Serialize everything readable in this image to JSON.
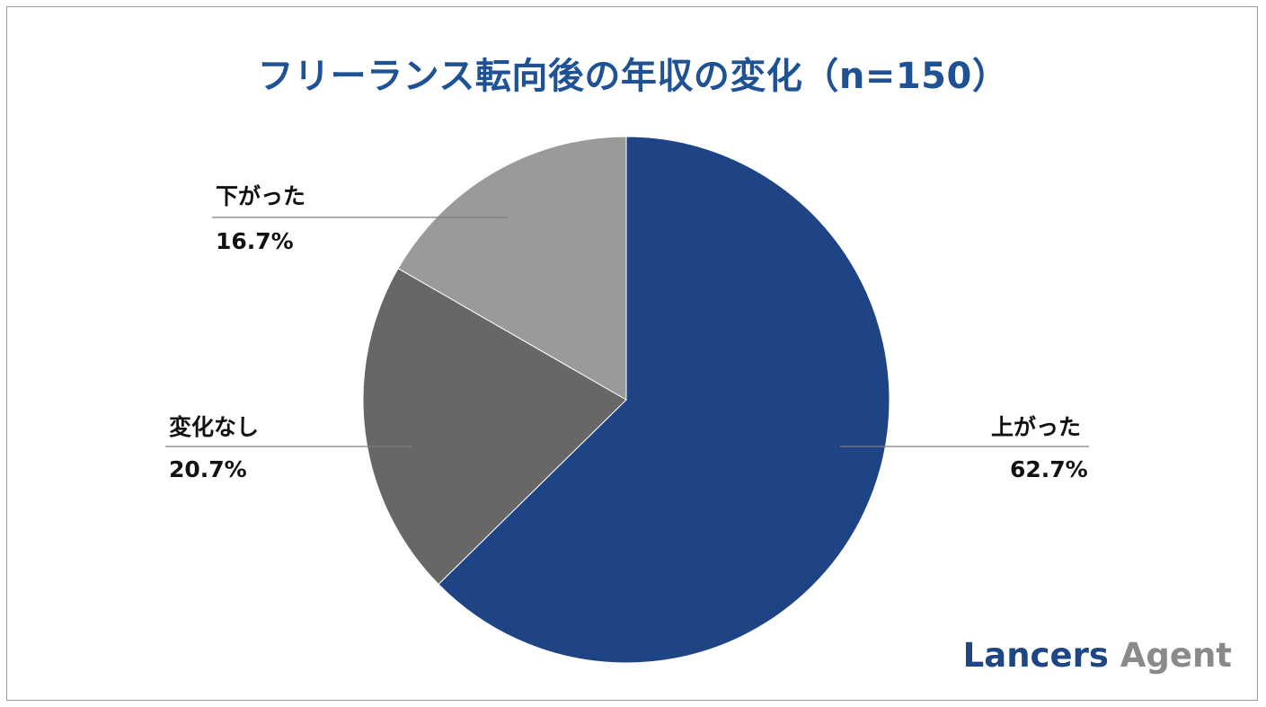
{
  "chart_data": {
    "type": "pie",
    "title": "フリーランス転向後の年収の変化（n=150）",
    "slices": [
      {
        "label": "上がった",
        "value": 62.7,
        "value_label": "62.7%",
        "color": "#1e4485"
      },
      {
        "label": "変化なし",
        "value": 20.7,
        "value_label": "20.7%",
        "color": "#676767"
      },
      {
        "label": "下がった",
        "value": 16.7,
        "value_label": "16.7%",
        "color": "#9a9a9a"
      }
    ],
    "start": "12 o'clock",
    "direction": "clockwise",
    "legend": "none"
  },
  "logo": {
    "brand_part1": "Lancers",
    "brand_part2": "Agent"
  }
}
